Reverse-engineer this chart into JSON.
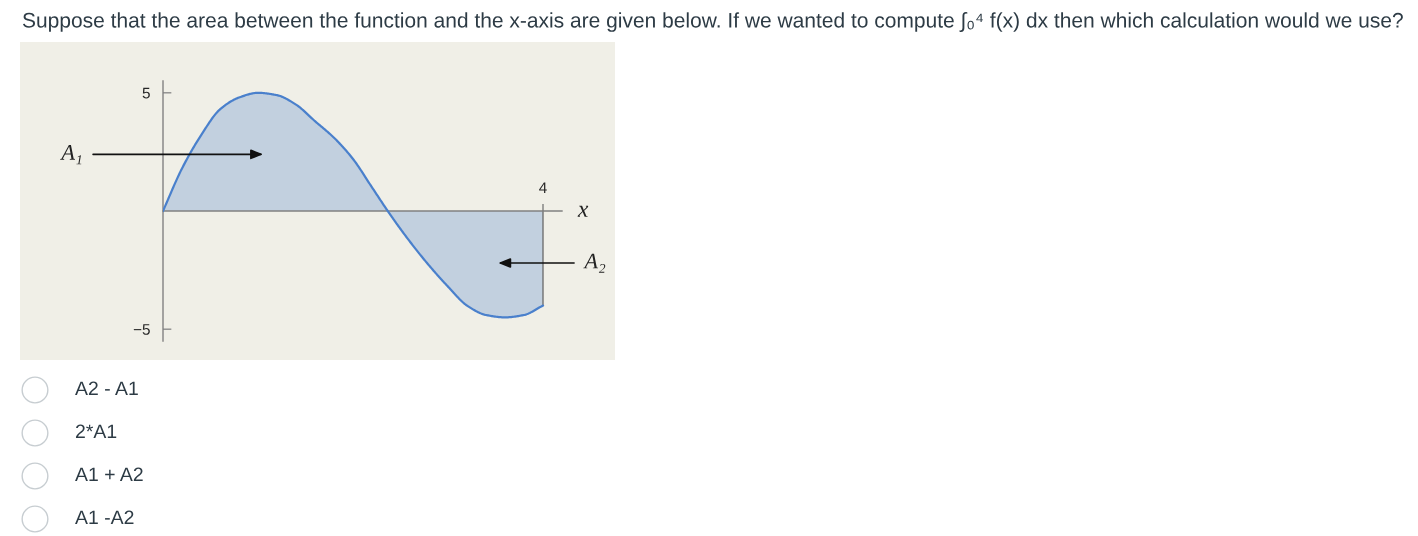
{
  "chart_data": {
    "type": "area",
    "title": "Suppose that the area between the function and the x-axis are given below. If we wanted to compute ∫₀⁴ f(x) dx then which calculation would we use?",
    "xlabel": "x",
    "categories": [
      null,
      null,
      null,
      null,
      null,
      null,
      null,
      null,
      null,
      null,
      null,
      null,
      null,
      null,
      null,
      null,
      null,
      null,
      null,
      null,
      "4"
    ],
    "series": [
      {
        "color": "#4a80cc",
        "values": [
          0,
          1.8,
          3.2,
          4.3,
          4.8,
          5,
          4.9,
          4.5,
          3.8,
          3.1,
          2.2,
          1,
          -0.2,
          -1.3,
          -2.3,
          -3.2,
          -4,
          -4.4,
          -4.5,
          -4.4,
          -4
        ]
      }
    ],
    "ylim": [
      -5.5,
      5.5
    ],
    "yticks": [
      {
        "value": -5,
        "label": "−5"
      },
      5
    ],
    "line_style": "solid",
    "annotations": [
      "A₁",
      "A₂",
      "A2 - A1",
      "2*A1",
      "A1 + A2",
      "A1 -A2"
    ]
  }
}
